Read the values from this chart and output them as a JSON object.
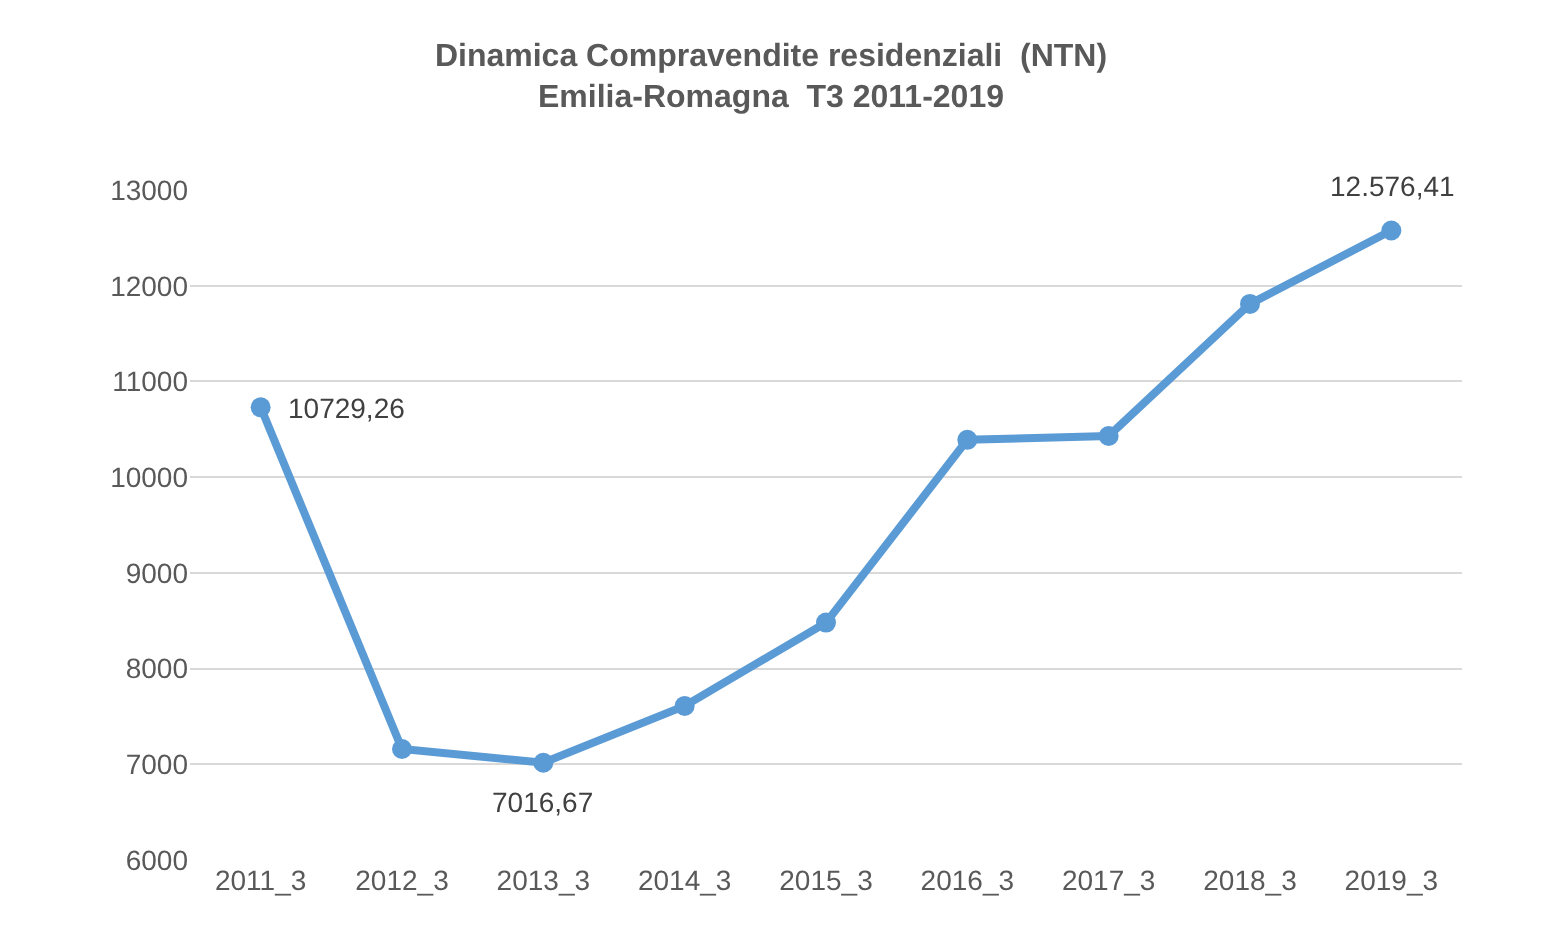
{
  "chart_data": {
    "type": "line",
    "title": "Dinamica Compravendite residenziali  (NTN)\nEmilia-Romagna  T3 2011-2019",
    "categories": [
      "2011_3",
      "2012_3",
      "2013_3",
      "2014_3",
      "2015_3",
      "2016_3",
      "2017_3",
      "2018_3",
      "2019_3"
    ],
    "series": [
      {
        "color": "#5b9bd5",
        "values": [
          10729.26,
          7160,
          7016.67,
          7610,
          8480,
          10390,
          10430,
          11810,
          12576.41
        ],
        "value_labels": [
          "10729,26",
          null,
          "7016,67",
          null,
          null,
          null,
          null,
          null,
          "12.576,41"
        ]
      }
    ],
    "ylim": [
      6000,
      13000
    ],
    "yticks": [
      6000,
      7000,
      8000,
      9000,
      10000,
      11000,
      12000,
      13000
    ],
    "grid": "y",
    "marker": "circle",
    "line_style": "solid"
  }
}
